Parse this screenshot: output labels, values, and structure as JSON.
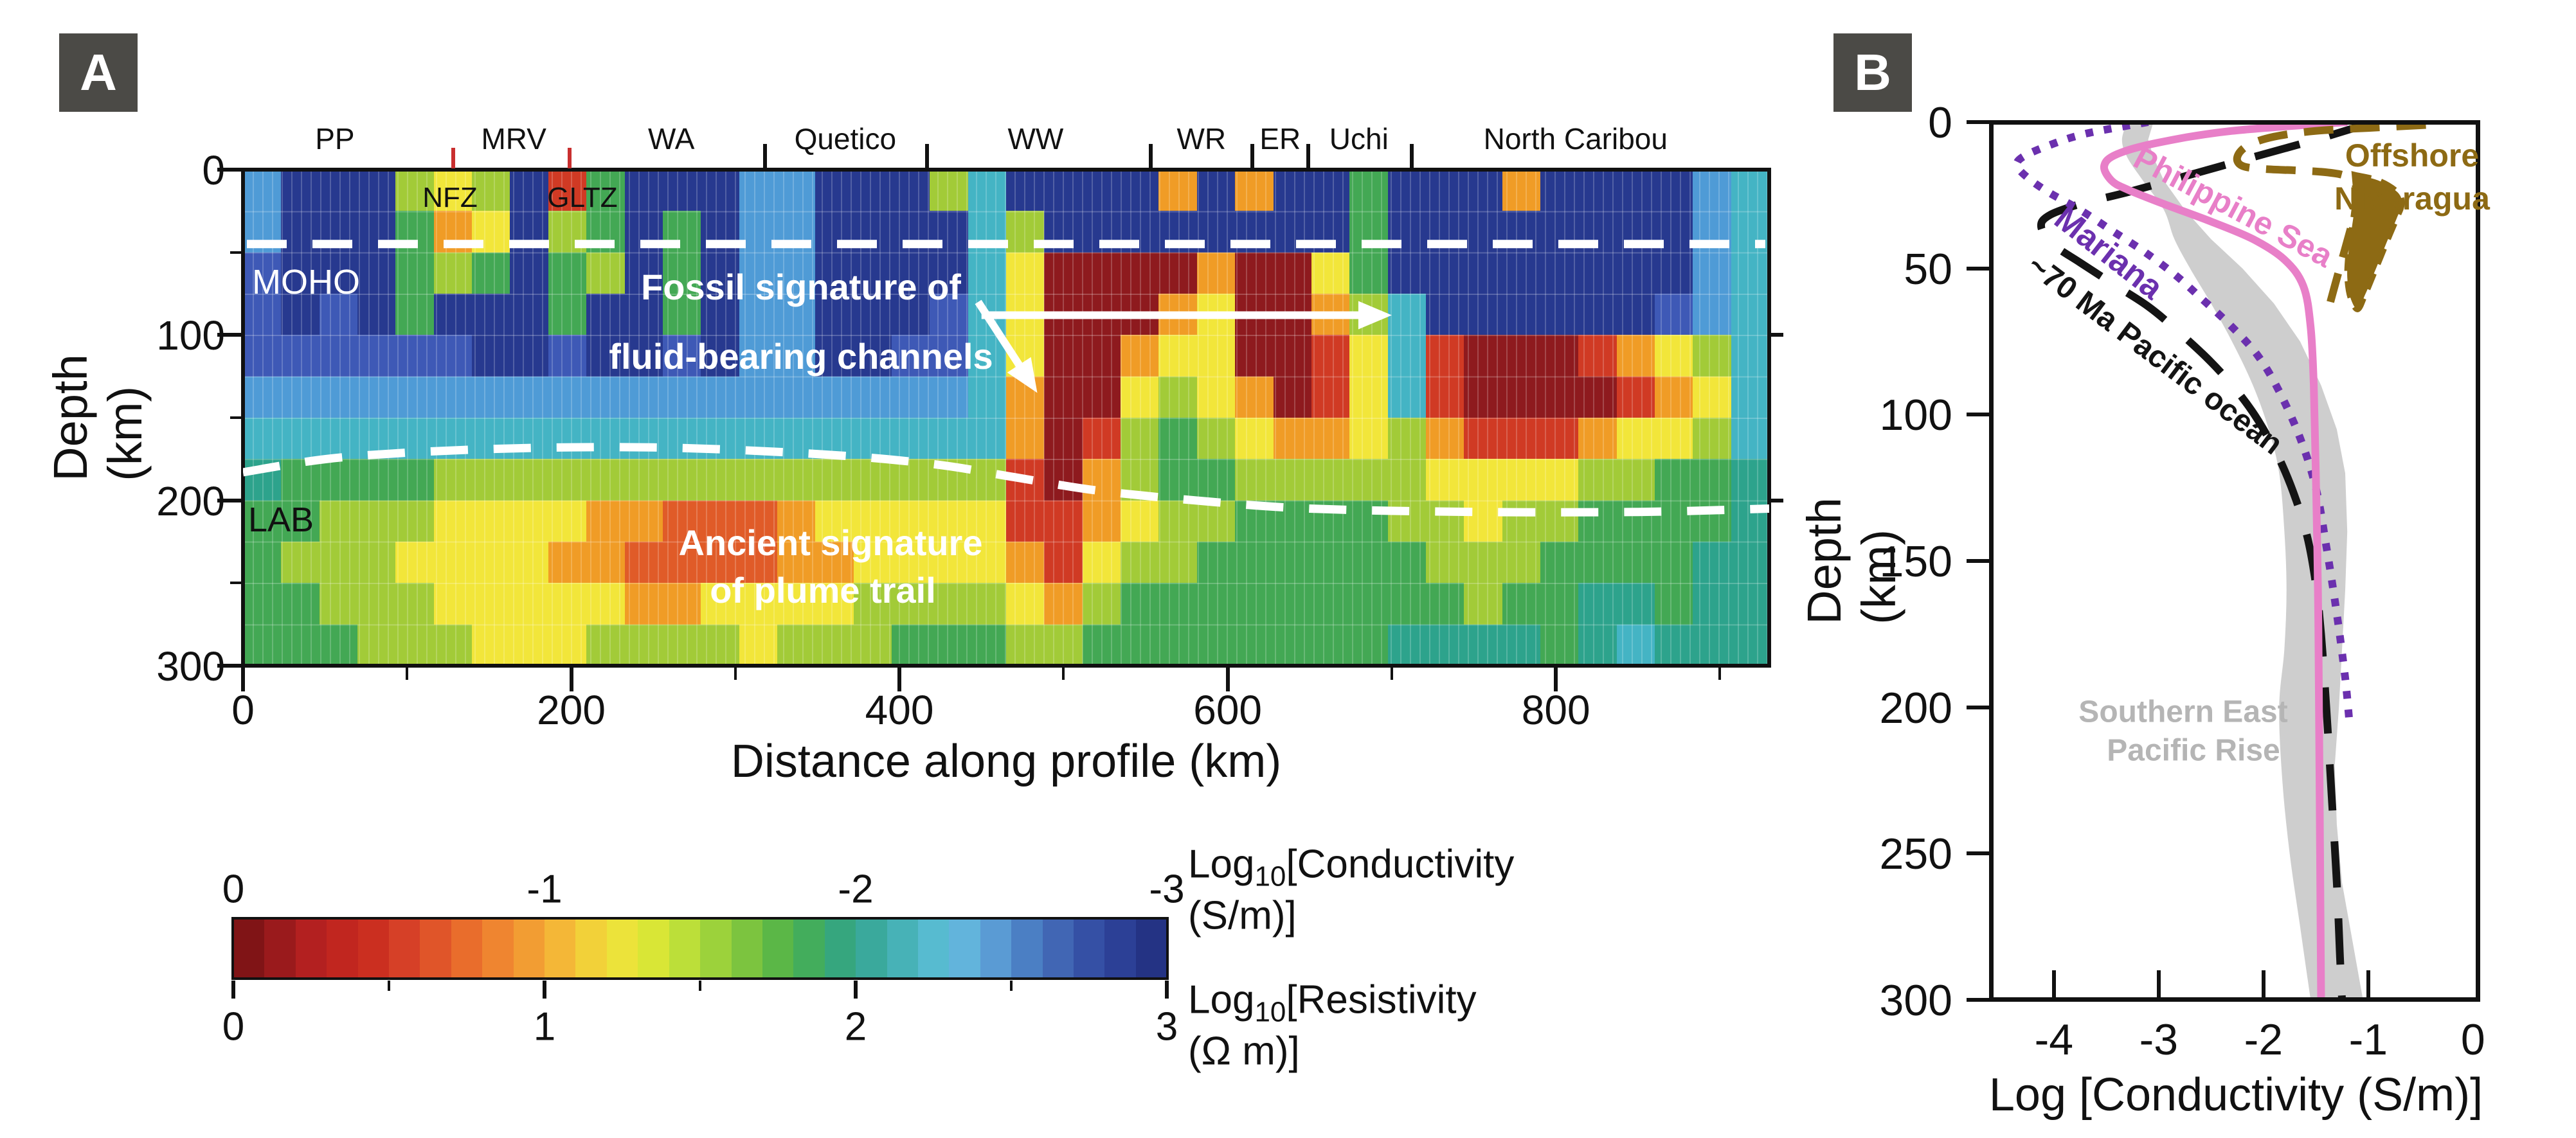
{
  "chart_data": [
    {
      "panel": "A",
      "badge": "A",
      "type": "heatmap",
      "xlabel": "Distance along profile (km)",
      "ylabel": "Depth (km)",
      "xlim": [
        0,
        930
      ],
      "ylim": [
        300,
        0
      ],
      "x_ticks": [
        0,
        200,
        400,
        600,
        800
      ],
      "x_minor_ticks": [
        100,
        300,
        500,
        700,
        900
      ],
      "y_ticks": [
        0,
        100,
        200,
        300
      ],
      "y_minor_ticks": [
        50,
        150,
        250
      ],
      "terrane_labels": [
        {
          "label": "PP",
          "km": 56
        },
        {
          "label": "MRV",
          "km": 165
        },
        {
          "label": "WA",
          "km": 261
        },
        {
          "label": "Quetico",
          "km": 367
        },
        {
          "label": "WW",
          "km": 483
        },
        {
          "label": "WR",
          "km": 584
        },
        {
          "label": "ER",
          "km": 632
        },
        {
          "label": "Uchi",
          "km": 680
        },
        {
          "label": "North Caribou",
          "km": 812
        }
      ],
      "terrane_boundaries_km": [
        318,
        417,
        553,
        615,
        649,
        712
      ],
      "fault_ticks_km": [
        128,
        199
      ],
      "fault_labels": [
        {
          "label": "NFZ",
          "km": 126,
          "depth_km": 16
        },
        {
          "label": "GLTZ",
          "km": 206,
          "depth_km": 16
        }
      ],
      "moho": {
        "label": "MOHO",
        "depth_km": 45
      },
      "lab": {
        "label": "LAB",
        "points": [
          [
            0,
            183
          ],
          [
            60,
            174
          ],
          [
            150,
            169
          ],
          [
            250,
            168
          ],
          [
            350,
            172
          ],
          [
            420,
            178
          ],
          [
            470,
            186
          ],
          [
            520,
            194
          ],
          [
            580,
            200
          ],
          [
            650,
            205
          ],
          [
            750,
            207
          ],
          [
            850,
            207
          ],
          [
            930,
            205
          ]
        ]
      },
      "annotations": [
        {
          "id": "fossil",
          "lines": [
            "Fossil signature of",
            "fluid-bearing channels"
          ]
        },
        {
          "id": "plume",
          "lines": [
            "Ancient signature",
            "of plume trail"
          ]
        }
      ],
      "arrows": [
        {
          "from": [
            450,
            88
          ],
          "to": [
            700,
            88
          ],
          "kind": "horizontal"
        },
        {
          "from": [
            448,
            80
          ],
          "to": [
            484,
            135
          ],
          "kind": "diagonal"
        }
      ],
      "heatmap": {
        "n_cols": 40,
        "n_rows": 12,
        "km_per_col": 23.25,
        "depth_km_per_row": 25,
        "palette": {
          "B": "#27398f",
          "b": "#3e59b6",
          "L": "#4f9bd6",
          "c": "#44b4c4",
          "t": "#2da38c",
          "G": "#43a854",
          "g": "#a2cb38",
          "Y": "#f2e63a",
          "O": "#f09c26",
          "o": "#e05b28",
          "R": "#d03a24",
          "r": "#8e1a1e"
        },
        "rows": [
          "LBBBgYgBRGBBBLLBBBgcBBBBOBOBBGBBBOBBBBLc",
          "LBBBGOYBgGBGBLLBBBBcgBBBBBBBBGBBBBBBBBLc",
          "bBBBGgGBGgBGBLLBBBBcYrrrrOrrYGBBBBBBBBLc",
          "bBbBGBBBGBBGBLLBBBbcYrrrOYrrOgcBBBBBBbLc",
          "bbbbbbBBbBBbBLLBBbbcYrrOYYrrRYcRrrrROYgc",
          "LLLLLLLLLLLLLLLLLLLcOrrYgYOrRYcRrrrrROYc",
          "ccccccccccccccccccccOrRgGgYOOYgORRROYYgc",
          "tGGGGgggggggggggggggRrOgGGgggggYYYYggGGt",
          "GGgggYYYYOOoooOYYYYYRROYggGGGGggYggGGGGt",
          "GgggYYYYOOooooOOYYYYORYggGGGGGGgggGGGGtt",
          "GGgggYYYYYOOYYYYggggYOgGGGGGGGGGgGGttGtt",
          "GGGgggYYYggggYgggGGGggGGGGGGGGttttGtcttt"
        ]
      },
      "colorbar": {
        "conductivity_ticks": [
          "0",
          "-1",
          "-2",
          "-3"
        ],
        "resistivity_ticks": [
          "0",
          "1",
          "2",
          "3"
        ],
        "conductivity_label": {
          "prefix": "Log",
          "sub": "10",
          "rest": "[Conductivity (S/m)]"
        },
        "resistivity_label": {
          "prefix": "Log",
          "sub": "10",
          "rest": "[Resistivity (Ω m)]"
        },
        "segments": [
          "#801416",
          "#9a1a1c",
          "#b32020",
          "#c1261f",
          "#cb2f20",
          "#d64027",
          "#e05529",
          "#e96d2c",
          "#ef8530",
          "#f29d33",
          "#f4b737",
          "#f2d139",
          "#ece33a",
          "#d9e636",
          "#bcdf39",
          "#9cd23b",
          "#7cc43f",
          "#5bb747",
          "#43ad5c",
          "#36a67e",
          "#3aa99c",
          "#47b2b7",
          "#57bbd0",
          "#62b4dc",
          "#5a9bd4",
          "#4b7fc4",
          "#4166b4",
          "#3550a5",
          "#2c4096",
          "#243384"
        ]
      }
    },
    {
      "panel": "B",
      "badge": "B",
      "type": "line",
      "xlabel": "Log [Conductivity (S/m)]",
      "ylabel": "Depth (km)",
      "xlim": [
        -4.6,
        0.05
      ],
      "ylim": [
        300,
        0
      ],
      "x_ticks": [
        -4,
        -3,
        -2,
        -1,
        0
      ],
      "y_ticks": [
        0,
        50,
        100,
        150,
        200,
        250,
        300
      ],
      "series": [
        {
          "name": "Southern East Pacific Rise",
          "label_lines": [
            "Southern East",
            "Pacific Rise"
          ],
          "color": "#c9c9c9",
          "style": "band",
          "band_left": [
            [
              -3.3,
              0
            ],
            [
              -3.35,
              6
            ],
            [
              -3.3,
              12
            ],
            [
              -3.15,
              20
            ],
            [
              -2.95,
              30
            ],
            [
              -2.85,
              40
            ],
            [
              -2.7,
              50
            ],
            [
              -2.5,
              62
            ],
            [
              -2.3,
              75
            ],
            [
              -2.1,
              90
            ],
            [
              -1.95,
              105
            ],
            [
              -1.85,
              120
            ],
            [
              -1.8,
              140
            ],
            [
              -1.78,
              160
            ],
            [
              -1.8,
              180
            ],
            [
              -1.85,
              200
            ],
            [
              -1.82,
              225
            ],
            [
              -1.75,
              250
            ],
            [
              -1.65,
              275
            ],
            [
              -1.55,
              300
            ]
          ],
          "band_right": [
            [
              -3.05,
              0
            ],
            [
              -3.1,
              6
            ],
            [
              -3.05,
              12
            ],
            [
              -2.95,
              20
            ],
            [
              -2.75,
              30
            ],
            [
              -2.5,
              40
            ],
            [
              -2.2,
              50
            ],
            [
              -1.9,
              62
            ],
            [
              -1.65,
              75
            ],
            [
              -1.45,
              90
            ],
            [
              -1.3,
              105
            ],
            [
              -1.22,
              120
            ],
            [
              -1.2,
              140
            ],
            [
              -1.22,
              160
            ],
            [
              -1.25,
              180
            ],
            [
              -1.28,
              200
            ],
            [
              -1.32,
              220
            ],
            [
              -1.3,
              240
            ],
            [
              -1.25,
              260
            ],
            [
              -1.15,
              280
            ],
            [
              -1.05,
              300
            ]
          ]
        },
        {
          "name": "~70 Ma Pacific ocean",
          "color": "#141414",
          "style": "dashed",
          "points": [
            [
              -0.95,
              0
            ],
            [
              -1.5,
              6
            ],
            [
              -2.1,
              12
            ],
            [
              -2.7,
              18
            ],
            [
              -3.3,
              24
            ],
            [
              -3.75,
              28
            ],
            [
              -4.05,
              32
            ],
            [
              -4.12,
              36
            ],
            [
              -4.0,
              42
            ],
            [
              -3.75,
              48
            ],
            [
              -3.45,
              55
            ],
            [
              -3.1,
              63
            ],
            [
              -2.8,
              72
            ],
            [
              -2.5,
              82
            ],
            [
              -2.25,
              92
            ],
            [
              -2.05,
              102
            ],
            [
              -1.85,
              115
            ],
            [
              -1.7,
              128
            ],
            [
              -1.58,
              142
            ],
            [
              -1.5,
              158
            ],
            [
              -1.45,
              175
            ],
            [
              -1.4,
              200
            ],
            [
              -1.35,
              230
            ],
            [
              -1.3,
              260
            ],
            [
              -1.27,
              285
            ],
            [
              -1.25,
              300
            ]
          ]
        },
        {
          "name": "Mariana",
          "color": "#6b30ae",
          "style": "dotted",
          "points": [
            [
              -3.1,
              0
            ],
            [
              -3.7,
              4
            ],
            [
              -4.05,
              8
            ],
            [
              -4.3,
              12
            ],
            [
              -4.35,
              15
            ],
            [
              -4.25,
              19
            ],
            [
              -4.05,
              24
            ],
            [
              -3.75,
              30
            ],
            [
              -3.45,
              37
            ],
            [
              -3.15,
              44
            ],
            [
              -2.85,
              52
            ],
            [
              -2.6,
              60
            ],
            [
              -2.3,
              70
            ],
            [
              -2.05,
              80
            ],
            [
              -1.85,
              92
            ],
            [
              -1.65,
              108
            ],
            [
              -1.5,
              125
            ],
            [
              -1.4,
              145
            ],
            [
              -1.3,
              168
            ],
            [
              -1.22,
              190
            ],
            [
              -1.18,
              205
            ]
          ]
        },
        {
          "name": "Philippine Sea",
          "color": "#e87fc8",
          "style": "solid",
          "points": [
            [
              -1.2,
              0
            ],
            [
              -2.3,
              3
            ],
            [
              -3.0,
              7
            ],
            [
              -3.4,
              11
            ],
            [
              -3.52,
              15
            ],
            [
              -3.45,
              20
            ],
            [
              -3.3,
              23
            ],
            [
              -2.95,
              28
            ],
            [
              -2.5,
              34
            ],
            [
              -2.1,
              40
            ],
            [
              -1.8,
              47
            ],
            [
              -1.62,
              56
            ],
            [
              -1.55,
              70
            ],
            [
              -1.52,
              90
            ],
            [
              -1.5,
              120
            ],
            [
              -1.48,
              160
            ],
            [
              -1.47,
              200
            ],
            [
              -1.46,
              250
            ],
            [
              -1.45,
              300
            ]
          ]
        },
        {
          "name": "Offshore Nicaragua",
          "label_lines": [
            "Offshore",
            "Nicaragua"
          ],
          "color": "#8d6a14",
          "style": "dashed-olive",
          "points": [
            [
              -0.45,
              1
            ],
            [
              -1.0,
              2
            ],
            [
              -1.5,
              3
            ],
            [
              -1.9,
              5
            ],
            [
              -2.15,
              8
            ],
            [
              -2.25,
              12
            ],
            [
              -2.2,
              15
            ],
            [
              -2.0,
              16
            ],
            [
              -1.7,
              16.5
            ],
            [
              -1.45,
              17
            ],
            [
              -1.25,
              18
            ],
            [
              -1.15,
              20
            ],
            [
              -1.1,
              24
            ],
            [
              -1.12,
              30
            ],
            [
              -1.18,
              38
            ],
            [
              -1.25,
              47
            ],
            [
              -1.32,
              56
            ],
            [
              -1.38,
              64
            ]
          ],
          "blob": [
            [
              -1.13,
              18
            ],
            [
              -0.9,
              20
            ],
            [
              -0.72,
              24
            ],
            [
              -0.68,
              28
            ],
            [
              -0.73,
              33
            ],
            [
              -0.8,
              39
            ],
            [
              -0.88,
              46
            ],
            [
              -0.96,
              53
            ],
            [
              -1.03,
              59
            ],
            [
              -1.1,
              64
            ],
            [
              -1.17,
              60
            ],
            [
              -1.2,
              53
            ],
            [
              -1.19,
              45
            ],
            [
              -1.16,
              37
            ],
            [
              -1.13,
              29
            ],
            [
              -1.12,
              22
            ]
          ]
        }
      ]
    }
  ]
}
